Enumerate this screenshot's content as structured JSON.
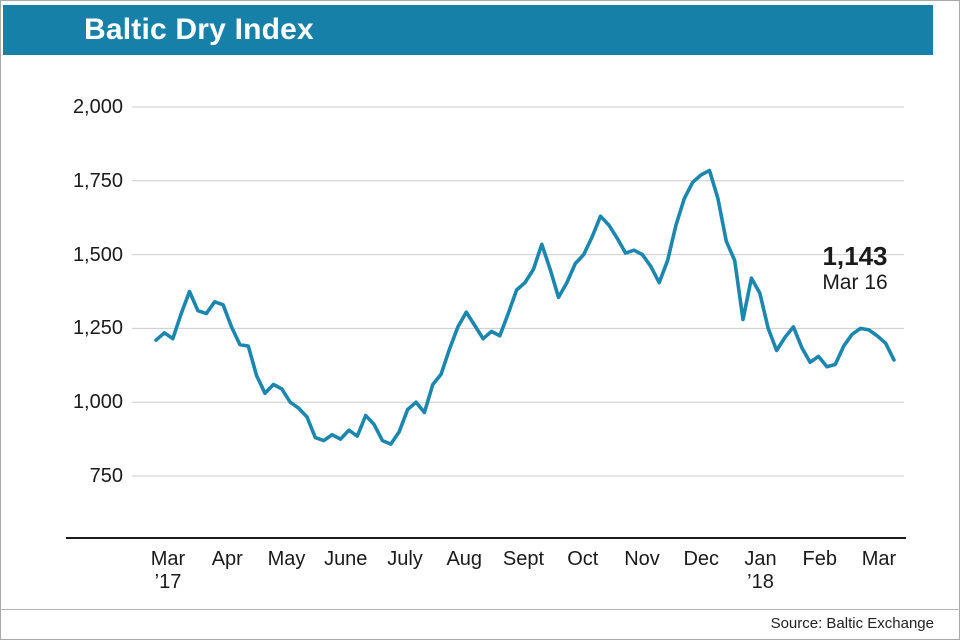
{
  "header": {
    "title": "Baltic Dry Index"
  },
  "annotation": {
    "value": "1,143",
    "date": "Mar 16"
  },
  "footer": {
    "source": "Source: Baltic Exchange"
  },
  "colors": {
    "header_bg": "#1780A9",
    "line": "#1B87AE",
    "grid": "#CCCCCC",
    "axis": "#1A1A1A",
    "title_text": "#FFFFFF"
  },
  "chart_data": {
    "type": "line",
    "title": "Baltic Dry Index",
    "xlabel": "",
    "ylabel": "",
    "ylim": [
      750,
      2000
    ],
    "grid": true,
    "legend": false,
    "y_ticks": [
      {
        "value": 2000,
        "label": "2,000"
      },
      {
        "value": 1750,
        "label": "1,750"
      },
      {
        "value": 1500,
        "label": "1,500"
      },
      {
        "value": 1250,
        "label": "1,250"
      },
      {
        "value": 1000,
        "label": "1,000"
      },
      {
        "value": 750,
        "label": "750"
      }
    ],
    "x_ticks": [
      {
        "label": "Mar",
        "sub": "’17"
      },
      {
        "label": "Apr"
      },
      {
        "label": "May"
      },
      {
        "label": "June"
      },
      {
        "label": "July"
      },
      {
        "label": "Aug"
      },
      {
        "label": "Sept"
      },
      {
        "label": "Oct"
      },
      {
        "label": "Nov"
      },
      {
        "label": "Dec"
      },
      {
        "label": "Jan",
        "sub": "’18"
      },
      {
        "label": "Feb"
      },
      {
        "label": "Mar"
      }
    ],
    "series": [
      {
        "name": "Baltic Dry Index",
        "values": [
          1210,
          1235,
          1215,
          1300,
          1375,
          1310,
          1300,
          1340,
          1330,
          1255,
          1195,
          1190,
          1090,
          1030,
          1060,
          1045,
          1000,
          980,
          950,
          880,
          870,
          890,
          875,
          905,
          885,
          955,
          925,
          870,
          858,
          900,
          975,
          1000,
          965,
          1060,
          1095,
          1180,
          1255,
          1305,
          1260,
          1215,
          1240,
          1225,
          1300,
          1380,
          1405,
          1450,
          1535,
          1450,
          1355,
          1405,
          1470,
          1500,
          1560,
          1630,
          1600,
          1555,
          1505,
          1515,
          1500,
          1460,
          1405,
          1480,
          1600,
          1690,
          1745,
          1770,
          1785,
          1690,
          1545,
          1480,
          1280,
          1420,
          1370,
          1250,
          1175,
          1220,
          1255,
          1185,
          1135,
          1155,
          1120,
          1128,
          1190,
          1230,
          1250,
          1245,
          1225,
          1200,
          1143
        ]
      }
    ],
    "annotation": {
      "value": 1143,
      "label": "1,143",
      "date": "Mar 16"
    },
    "source": "Source: Baltic Exchange"
  }
}
